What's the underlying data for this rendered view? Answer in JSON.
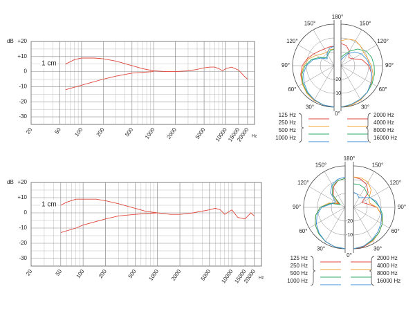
{
  "chart_data": [
    {
      "type": "line",
      "ylabel": "dB",
      "xlabel": "Hz",
      "annotation": "1 cm",
      "log_x": true,
      "grid": true,
      "xlim": [
        20,
        25000
      ],
      "ylim": [
        -35,
        20
      ],
      "xticks": [
        20,
        50,
        100,
        200,
        500,
        1000,
        2000,
        5000,
        10000,
        15000,
        20000
      ],
      "yticks": [
        -30,
        -20,
        -10,
        0,
        {
          "value": 10,
          "label": "+10"
        },
        {
          "value": 20,
          "label": "+20"
        }
      ],
      "series": [
        {
          "color": "#e0453a",
          "x": [
            60,
            80,
            100,
            150,
            200,
            300,
            500,
            700,
            1000,
            1500,
            2000,
            3000,
            4000,
            5000,
            6000,
            7000,
            8000,
            9000,
            10000,
            12000,
            15000,
            18000,
            20000
          ],
          "values": [
            5,
            8,
            9,
            9,
            8.5,
            7,
            4,
            2,
            0.5,
            0,
            0,
            0.5,
            1.5,
            2.5,
            3,
            3,
            2,
            0.5,
            2,
            3,
            1,
            -3,
            -5
          ]
        },
        {
          "color": "#e0453a",
          "x": [
            60,
            100,
            200,
            300,
            500,
            700,
            1000
          ],
          "values": [
            -12,
            -9,
            -5,
            -3,
            -1,
            -0.5,
            0
          ]
        }
      ]
    },
    {
      "type": "polar",
      "rlim": [
        -30,
        0
      ],
      "rticks": [
        -20,
        -10
      ],
      "thetaticks": [
        {
          "value": 0,
          "label": "0°"
        },
        {
          "value": 30,
          "label": "30°"
        },
        {
          "value": 60,
          "label": "60°"
        },
        {
          "value": 90,
          "label": "90°"
        },
        {
          "value": 120,
          "label": "120°"
        },
        {
          "value": 150,
          "label": "150°"
        },
        {
          "value": 180,
          "label": "180°"
        }
      ],
      "theta": [
        0,
        15,
        30,
        45,
        60,
        75,
        90,
        105,
        120,
        135,
        150,
        165,
        180
      ],
      "series": [
        {
          "name": "125 Hz",
          "color": "#e0453a",
          "side": "left",
          "values": [
            0,
            -0.5,
            -1,
            -2,
            -3.5,
            -5,
            -7,
            -10,
            -13,
            -15,
            -16,
            -16,
            -16
          ]
        },
        {
          "name": "250 Hz",
          "color": "#f0a030",
          "side": "left",
          "values": [
            0,
            -0.5,
            -1,
            -2,
            -3.5,
            -5.5,
            -8,
            -11,
            -15,
            -18,
            -19,
            -18,
            -18
          ]
        },
        {
          "name": "500 Hz",
          "color": "#2aa860",
          "side": "left",
          "values": [
            0,
            -0.5,
            -1.5,
            -2.5,
            -4,
            -6,
            -9,
            -13,
            -18,
            -22,
            -21,
            -19,
            -18
          ]
        },
        {
          "name": "1000 Hz",
          "color": "#3b8fd8",
          "side": "left",
          "values": [
            0,
            -0.5,
            -1.5,
            -3,
            -5,
            -7,
            -10,
            -14,
            -19,
            -23,
            -20,
            -17,
            -16
          ]
        },
        {
          "name": "2000 Hz",
          "color": "#e0453a",
          "side": "right",
          "values": [
            0,
            -0.5,
            -1.5,
            -3,
            -5,
            -7,
            -10,
            -14,
            -20,
            -22,
            -18,
            -15,
            -14
          ]
        },
        {
          "name": "4000 Hz",
          "color": "#f0a030",
          "side": "right",
          "values": [
            0,
            -0.5,
            -1.5,
            -3,
            -4.5,
            -6,
            -8,
            -10,
            -11,
            -10,
            -9,
            -10,
            -12
          ]
        },
        {
          "name": "8000 Hz",
          "color": "#2aa860",
          "side": "right",
          "values": [
            0,
            -1,
            -2,
            -3,
            -4,
            -5,
            -6,
            -7,
            -9,
            -13,
            -18,
            -22,
            -24
          ]
        },
        {
          "name": "16000 Hz",
          "color": "#3b8fd8",
          "side": "right",
          "values": [
            0,
            -1,
            -2,
            -3,
            -5,
            -7,
            -9,
            -11,
            -13,
            -16,
            -20,
            -24,
            -26
          ]
        }
      ]
    },
    {
      "type": "line",
      "ylabel": "dB",
      "xlabel": "Hz",
      "annotation": "1 cm",
      "log_x": true,
      "grid": true,
      "xlim": [
        20,
        25000
      ],
      "ylim": [
        -35,
        20
      ],
      "xticks": [
        20,
        50,
        100,
        200,
        500,
        1000,
        2000,
        5000,
        10000,
        15000,
        20000
      ],
      "yticks": [
        -30,
        -20,
        -10,
        0,
        {
          "value": 10,
          "label": "+10"
        },
        {
          "value": 20,
          "label": "+20"
        }
      ],
      "series": [
        {
          "color": "#e0453a",
          "x": [
            50,
            60,
            80,
            100,
            150,
            200,
            300,
            500,
            700,
            1000,
            1500,
            2000,
            3000,
            5000,
            6000,
            7000,
            8000,
            10000,
            12000,
            15000,
            18000,
            20000
          ],
          "values": [
            5,
            7,
            9,
            9,
            9,
            8,
            6,
            3,
            1,
            0,
            -1,
            -1,
            0,
            2,
            3,
            2,
            -1,
            2,
            -3,
            -4,
            0,
            -2
          ]
        },
        {
          "color": "#e0453a",
          "x": [
            50,
            80,
            100,
            200,
            300,
            500,
            700,
            1000
          ],
          "values": [
            -13,
            -10,
            -8,
            -4,
            -2,
            -1,
            -0.5,
            0
          ]
        }
      ]
    },
    {
      "type": "polar",
      "rlim": [
        -30,
        0
      ],
      "rticks": [
        -20,
        -10
      ],
      "thetaticks": [
        {
          "value": 0,
          "label": "0°"
        },
        {
          "value": 30,
          "label": "30°"
        },
        {
          "value": 60,
          "label": "60°"
        },
        {
          "value": 90,
          "label": "90°"
        },
        {
          "value": 120,
          "label": "120°"
        },
        {
          "value": 150,
          "label": "150°"
        },
        {
          "value": 180,
          "label": "180°"
        }
      ],
      "theta": [
        0,
        15,
        30,
        45,
        60,
        75,
        90,
        105,
        120,
        135,
        150,
        165,
        180
      ],
      "series": [
        {
          "name": "125 Hz",
          "color": "#e0453a",
          "side": "left",
          "values": [
            0,
            -0.5,
            -1.5,
            -3,
            -5,
            -8,
            -12,
            -18,
            -25,
            -18,
            -13,
            -10,
            -9
          ]
        },
        {
          "name": "250 Hz",
          "color": "#f0a030",
          "side": "left",
          "values": [
            0,
            -0.5,
            -1.5,
            -3,
            -5,
            -8,
            -12,
            -18,
            -24,
            -17,
            -12,
            -10,
            -9
          ]
        },
        {
          "name": "500 Hz",
          "color": "#2aa860",
          "side": "left",
          "values": [
            0,
            -0.5,
            -1.5,
            -3,
            -5,
            -8,
            -12,
            -19,
            -26,
            -17,
            -12,
            -10,
            -9
          ]
        },
        {
          "name": "1000 Hz",
          "color": "#3b8fd8",
          "side": "left",
          "values": [
            0,
            -0.5,
            -1.5,
            -3.5,
            -6,
            -9,
            -13,
            -20,
            -22,
            -15,
            -11,
            -9,
            -8
          ]
        },
        {
          "name": "2000 Hz",
          "color": "#e0453a",
          "side": "right",
          "values": [
            0,
            -0.5,
            -2,
            -4,
            -6,
            -9,
            -13,
            -20,
            -23,
            -15,
            -11,
            -9,
            -8
          ]
        },
        {
          "name": "4000 Hz",
          "color": "#f0a030",
          "side": "right",
          "values": [
            0,
            -1,
            -2,
            -4,
            -6,
            -9,
            -13,
            -18,
            -17,
            -12,
            -9,
            -8,
            -8
          ]
        },
        {
          "name": "8000 Hz",
          "color": "#2aa860",
          "side": "right",
          "values": [
            0,
            -1,
            -2.5,
            -4,
            -6,
            -8,
            -11,
            -14,
            -16,
            -16,
            -14,
            -13,
            -13
          ]
        },
        {
          "name": "16000 Hz",
          "color": "#3b8fd8",
          "side": "right",
          "values": [
            0,
            -1,
            -3,
            -5,
            -7,
            -9,
            -11,
            -13,
            -16,
            -20,
            -22,
            -20,
            -19
          ]
        }
      ]
    }
  ]
}
